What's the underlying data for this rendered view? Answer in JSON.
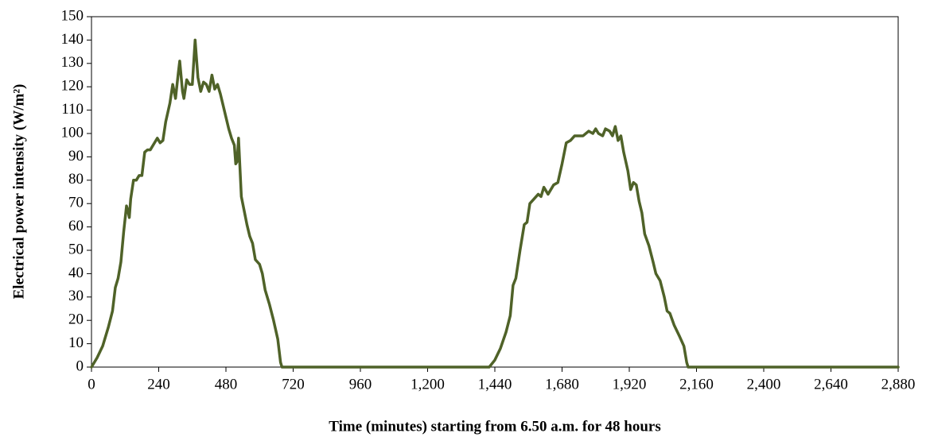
{
  "chart_data": {
    "type": "line",
    "x_label": "Time (minutes) starting from 6.50 a.m. for 48 hours",
    "y_label": "Electrical power intensity (W/m²)",
    "color": "#4f6228",
    "x": [
      0,
      20,
      40,
      60,
      75,
      85,
      95,
      105,
      115,
      125,
      130,
      135,
      140,
      150,
      160,
      170,
      180,
      190,
      200,
      210,
      225,
      235,
      245,
      255,
      265,
      280,
      290,
      300,
      310,
      315,
      325,
      330,
      340,
      350,
      360,
      370,
      380,
      390,
      400,
      410,
      420,
      430,
      440,
      450,
      460,
      470,
      480,
      490,
      500,
      510,
      515,
      520,
      525,
      535,
      545,
      555,
      565,
      575,
      585,
      600,
      610,
      620,
      635,
      650,
      665,
      675,
      680,
      720,
      1420,
      1440,
      1460,
      1480,
      1495,
      1505,
      1515,
      1530,
      1545,
      1555,
      1565,
      1580,
      1595,
      1605,
      1615,
      1630,
      1640,
      1650,
      1665,
      1680,
      1695,
      1710,
      1725,
      1740,
      1755,
      1775,
      1790,
      1800,
      1810,
      1825,
      1835,
      1850,
      1860,
      1870,
      1880,
      1890,
      1900,
      1915,
      1925,
      1935,
      1945,
      1955,
      1965,
      1975,
      1990,
      2005,
      2015,
      2030,
      2045,
      2055,
      2065,
      2080,
      2100,
      2115,
      2125,
      2130,
      2880
    ],
    "values": [
      0,
      4,
      9,
      17,
      24,
      34,
      38,
      45,
      58,
      69,
      67,
      64,
      72,
      80,
      80,
      82,
      82,
      92,
      93,
      93,
      96,
      98,
      96,
      97,
      105,
      113,
      121,
      115,
      126,
      131,
      118,
      115,
      123,
      121,
      121,
      140,
      124,
      118,
      122,
      121,
      118,
      125,
      119,
      121,
      117,
      112,
      107,
      102,
      98,
      95,
      87,
      88,
      98,
      73,
      67,
      61,
      56,
      53,
      46,
      44,
      40,
      33,
      27,
      20,
      12,
      2,
      0,
      0,
      0,
      3,
      8,
      15,
      22,
      35,
      38,
      50,
      61,
      62,
      70,
      72,
      74,
      73,
      77,
      74,
      76,
      78,
      79,
      87,
      96,
      97,
      99,
      99,
      99,
      101,
      100,
      102,
      100,
      99,
      102,
      101,
      99,
      103,
      97,
      99,
      92,
      84,
      76,
      79,
      78,
      71,
      66,
      57,
      52,
      45,
      40,
      37,
      30,
      24,
      23,
      18,
      13,
      9,
      2,
      0,
      0
    ],
    "xlim": [
      0,
      2880
    ],
    "ylim": [
      0,
      150
    ],
    "xticks": [
      0,
      240,
      480,
      720,
      960,
      {
        "value": 1200,
        "label": "1,200"
      },
      {
        "value": 1440,
        "label": "1,440"
      },
      {
        "value": 1680,
        "label": "1,680"
      },
      {
        "value": 1920,
        "label": "1,920"
      },
      {
        "value": 2160,
        "label": "2,160"
      },
      {
        "value": 2400,
        "label": "2,400"
      },
      {
        "value": 2640,
        "label": "2,640"
      },
      {
        "value": 2880,
        "label": "2,880"
      }
    ],
    "yticks": [
      0,
      10,
      20,
      30,
      40,
      50,
      60,
      70,
      80,
      90,
      100,
      110,
      120,
      130,
      140,
      150
    ]
  }
}
